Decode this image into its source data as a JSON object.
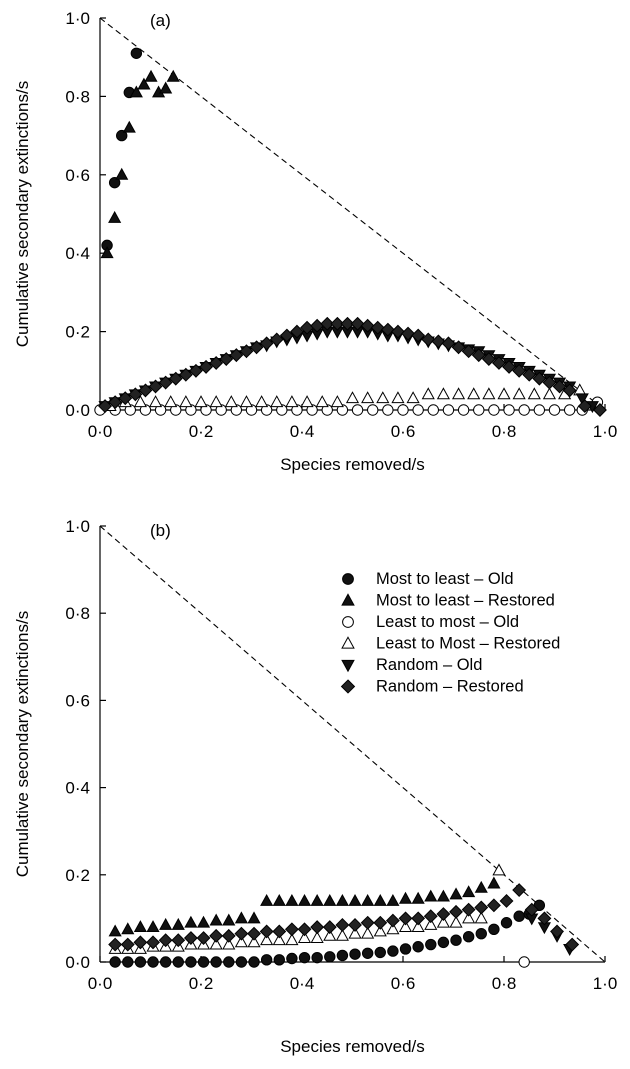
{
  "chart_data": [
    {
      "type": "scatter",
      "panel_label": "(a)",
      "xlabel": "Species removed/s",
      "ylabel": "Cumulative secondary extinctions/s",
      "xlim": [
        0,
        1
      ],
      "ylim": [
        0,
        1
      ],
      "xticks": [
        "0·0",
        "0·2",
        "0·4",
        "0·6",
        "0·8",
        "1·0"
      ],
      "yticks": [
        "0·0",
        "0·2",
        "0·4",
        "0·6",
        "0·8",
        "1·0"
      ],
      "reference_line": {
        "style": "dashed",
        "from": [
          0,
          1
        ],
        "to": [
          1,
          0
        ]
      },
      "series": [
        {
          "name": "Most to least – Old",
          "marker": "circle-filled",
          "x": [
            0.014,
            0.029,
            0.043,
            0.058,
            0.072
          ],
          "y": [
            0.42,
            0.58,
            0.7,
            0.81,
            0.91
          ]
        },
        {
          "name": "Most to least – Restored",
          "marker": "triangle-up-filled",
          "x": [
            0.014,
            0.029,
            0.043,
            0.058,
            0.072,
            0.087,
            0.101,
            0.116,
            0.13,
            0.145
          ],
          "y": [
            0.4,
            0.49,
            0.6,
            0.72,
            0.81,
            0.83,
            0.85,
            0.81,
            0.82,
            0.85
          ]
        },
        {
          "name": "Least to most – Old",
          "marker": "circle-open",
          "x": [
            0.0,
            0.03,
            0.06,
            0.09,
            0.12,
            0.15,
            0.18,
            0.21,
            0.24,
            0.27,
            0.3,
            0.33,
            0.36,
            0.39,
            0.42,
            0.45,
            0.48,
            0.51,
            0.54,
            0.57,
            0.6,
            0.63,
            0.66,
            0.69,
            0.72,
            0.75,
            0.78,
            0.81,
            0.84,
            0.87,
            0.9,
            0.93,
            0.955,
            0.985
          ],
          "y": [
            0.0,
            0.0,
            0.0,
            0.0,
            0.0,
            0.0,
            0.0,
            0.0,
            0.0,
            0.0,
            0.0,
            0.0,
            0.0,
            0.0,
            0.0,
            0.0,
            0.0,
            0.0,
            0.0,
            0.0,
            0.0,
            0.0,
            0.0,
            0.0,
            0.0,
            0.0,
            0.0,
            0.0,
            0.0,
            0.0,
            0.0,
            0.0,
            0.0,
            0.02
          ]
        },
        {
          "name": "Least to Most – Restored",
          "marker": "triangle-up-open",
          "x": [
            0.02,
            0.05,
            0.08,
            0.11,
            0.14,
            0.17,
            0.2,
            0.23,
            0.26,
            0.29,
            0.32,
            0.35,
            0.38,
            0.41,
            0.44,
            0.47,
            0.5,
            0.53,
            0.56,
            0.59,
            0.62,
            0.65,
            0.68,
            0.71,
            0.74,
            0.77,
            0.8,
            0.83,
            0.86,
            0.89,
            0.92,
            0.95
          ],
          "y": [
            0.01,
            0.02,
            0.02,
            0.02,
            0.02,
            0.02,
            0.02,
            0.02,
            0.02,
            0.02,
            0.02,
            0.02,
            0.02,
            0.02,
            0.02,
            0.02,
            0.03,
            0.03,
            0.03,
            0.03,
            0.03,
            0.04,
            0.04,
            0.04,
            0.04,
            0.04,
            0.04,
            0.04,
            0.04,
            0.04,
            0.04,
            0.05
          ]
        },
        {
          "name": "Random – Old",
          "marker": "triangle-down-filled",
          "x": [
            0.01,
            0.03,
            0.05,
            0.07,
            0.09,
            0.11,
            0.13,
            0.15,
            0.17,
            0.19,
            0.21,
            0.23,
            0.25,
            0.27,
            0.29,
            0.31,
            0.33,
            0.35,
            0.37,
            0.39,
            0.41,
            0.43,
            0.45,
            0.47,
            0.49,
            0.51,
            0.53,
            0.55,
            0.57,
            0.59,
            0.61,
            0.63,
            0.65,
            0.67,
            0.69,
            0.71,
            0.73,
            0.75,
            0.77,
            0.79,
            0.81,
            0.83,
            0.85,
            0.87,
            0.89,
            0.91,
            0.93,
            0.955,
            0.975
          ],
          "y": [
            0.01,
            0.02,
            0.03,
            0.04,
            0.05,
            0.06,
            0.07,
            0.08,
            0.09,
            0.1,
            0.11,
            0.12,
            0.13,
            0.14,
            0.15,
            0.16,
            0.165,
            0.175,
            0.18,
            0.185,
            0.19,
            0.195,
            0.2,
            0.2,
            0.2,
            0.2,
            0.2,
            0.195,
            0.19,
            0.19,
            0.185,
            0.18,
            0.175,
            0.17,
            0.165,
            0.16,
            0.155,
            0.15,
            0.14,
            0.13,
            0.12,
            0.11,
            0.1,
            0.09,
            0.08,
            0.07,
            0.06,
            0.03,
            0.01
          ]
        },
        {
          "name": "Random – Restored",
          "marker": "diamond-filled",
          "x": [
            0.01,
            0.03,
            0.05,
            0.07,
            0.09,
            0.11,
            0.13,
            0.15,
            0.17,
            0.19,
            0.21,
            0.23,
            0.25,
            0.27,
            0.29,
            0.31,
            0.33,
            0.35,
            0.37,
            0.39,
            0.41,
            0.43,
            0.45,
            0.47,
            0.49,
            0.51,
            0.53,
            0.55,
            0.57,
            0.59,
            0.61,
            0.63,
            0.65,
            0.67,
            0.69,
            0.71,
            0.73,
            0.75,
            0.77,
            0.79,
            0.81,
            0.83,
            0.85,
            0.87,
            0.89,
            0.91,
            0.93,
            0.96,
            0.99
          ],
          "y": [
            0.01,
            0.02,
            0.03,
            0.04,
            0.05,
            0.06,
            0.07,
            0.08,
            0.09,
            0.1,
            0.11,
            0.12,
            0.13,
            0.14,
            0.15,
            0.16,
            0.17,
            0.18,
            0.19,
            0.2,
            0.21,
            0.215,
            0.22,
            0.22,
            0.22,
            0.22,
            0.215,
            0.21,
            0.205,
            0.2,
            0.195,
            0.19,
            0.18,
            0.175,
            0.17,
            0.16,
            0.15,
            0.14,
            0.13,
            0.12,
            0.11,
            0.1,
            0.09,
            0.08,
            0.07,
            0.06,
            0.05,
            0.01,
            0.0
          ]
        }
      ]
    },
    {
      "type": "scatter",
      "panel_label": "(b)",
      "xlabel": "Species removed/s",
      "ylabel": "Cumulative secondary extinctions/s",
      "xlim": [
        0,
        1
      ],
      "ylim": [
        0,
        1
      ],
      "xticks": [
        "0·0",
        "0·2",
        "0·4",
        "0·6",
        "0·8",
        "1·0"
      ],
      "yticks": [
        "0·0",
        "0·2",
        "0·4",
        "0·6",
        "0·8",
        "1·0"
      ],
      "reference_line": {
        "style": "dashed",
        "from": [
          0,
          1
        ],
        "to": [
          1,
          0
        ]
      },
      "legend": {
        "placement": "top-right",
        "entries": [
          {
            "label": "Most to least – Old",
            "marker": "circle-filled"
          },
          {
            "label": "Most to least – Restored",
            "marker": "triangle-up-filled"
          },
          {
            "label": "Least to most – Old",
            "marker": "circle-open"
          },
          {
            "label": "Least to Most – Restored",
            "marker": "triangle-up-open"
          },
          {
            "label": "Random – Old",
            "marker": "triangle-down-filled"
          },
          {
            "label": "Random – Restored",
            "marker": "diamond-filled"
          }
        ]
      },
      "series": [
        {
          "name": "Most to least – Old",
          "marker": "circle-filled",
          "x": [
            0.03,
            0.055,
            0.08,
            0.105,
            0.13,
            0.155,
            0.18,
            0.205,
            0.23,
            0.255,
            0.28,
            0.305,
            0.33,
            0.355,
            0.38,
            0.405,
            0.43,
            0.455,
            0.48,
            0.505,
            0.53,
            0.555,
            0.58,
            0.605,
            0.63,
            0.655,
            0.68,
            0.705,
            0.73,
            0.755,
            0.78,
            0.805,
            0.83,
            0.85,
            0.87
          ],
          "y": [
            0.0,
            0.0,
            0.0,
            0.0,
            0.0,
            0.0,
            0.0,
            0.0,
            0.0,
            0.0,
            0.0,
            0.0,
            0.005,
            0.005,
            0.008,
            0.01,
            0.01,
            0.012,
            0.015,
            0.018,
            0.02,
            0.022,
            0.025,
            0.03,
            0.035,
            0.04,
            0.045,
            0.05,
            0.058,
            0.065,
            0.075,
            0.09,
            0.105,
            0.11,
            0.13
          ]
        },
        {
          "name": "Most to least – Restored",
          "marker": "triangle-up-filled",
          "x": [
            0.03,
            0.055,
            0.08,
            0.105,
            0.13,
            0.155,
            0.18,
            0.205,
            0.23,
            0.255,
            0.28,
            0.305,
            0.33,
            0.355,
            0.38,
            0.405,
            0.43,
            0.455,
            0.48,
            0.505,
            0.53,
            0.555,
            0.58,
            0.605,
            0.63,
            0.655,
            0.68,
            0.705,
            0.73,
            0.755,
            0.78
          ],
          "y": [
            0.07,
            0.075,
            0.08,
            0.08,
            0.085,
            0.085,
            0.09,
            0.09,
            0.095,
            0.095,
            0.1,
            0.1,
            0.14,
            0.14,
            0.14,
            0.14,
            0.14,
            0.14,
            0.14,
            0.14,
            0.14,
            0.14,
            0.14,
            0.145,
            0.145,
            0.15,
            0.15,
            0.155,
            0.16,
            0.17,
            0.18
          ]
        },
        {
          "name": "Least to most – Old",
          "marker": "circle-open",
          "x": [
            0.84
          ],
          "y": [
            0.0
          ]
        },
        {
          "name": "Least to Most – Restored",
          "marker": "triangle-up-open",
          "x": [
            0.03,
            0.055,
            0.08,
            0.105,
            0.13,
            0.155,
            0.18,
            0.205,
            0.23,
            0.255,
            0.28,
            0.305,
            0.33,
            0.355,
            0.38,
            0.405,
            0.43,
            0.455,
            0.48,
            0.505,
            0.53,
            0.555,
            0.58,
            0.605,
            0.63,
            0.655,
            0.68,
            0.705,
            0.73,
            0.755,
            0.79
          ],
          "y": [
            0.03,
            0.03,
            0.03,
            0.035,
            0.035,
            0.035,
            0.04,
            0.04,
            0.04,
            0.04,
            0.045,
            0.045,
            0.05,
            0.05,
            0.05,
            0.055,
            0.055,
            0.06,
            0.06,
            0.065,
            0.065,
            0.07,
            0.075,
            0.08,
            0.08,
            0.085,
            0.09,
            0.09,
            0.1,
            0.1,
            0.21
          ]
        },
        {
          "name": "Random – Old",
          "marker": "triangle-down-filled",
          "x": [
            0.855,
            0.88,
            0.905,
            0.93
          ],
          "y": [
            0.1,
            0.08,
            0.06,
            0.03
          ]
        },
        {
          "name": "Random – Restored",
          "marker": "diamond-filled",
          "x": [
            0.03,
            0.055,
            0.08,
            0.105,
            0.13,
            0.155,
            0.18,
            0.205,
            0.23,
            0.255,
            0.28,
            0.305,
            0.33,
            0.355,
            0.38,
            0.405,
            0.43,
            0.455,
            0.48,
            0.505,
            0.53,
            0.555,
            0.58,
            0.605,
            0.63,
            0.655,
            0.68,
            0.705,
            0.73,
            0.755,
            0.78,
            0.805,
            0.83,
            0.855,
            0.88,
            0.905,
            0.935
          ],
          "y": [
            0.04,
            0.04,
            0.045,
            0.045,
            0.05,
            0.05,
            0.055,
            0.055,
            0.06,
            0.06,
            0.065,
            0.065,
            0.07,
            0.07,
            0.075,
            0.075,
            0.08,
            0.08,
            0.085,
            0.085,
            0.09,
            0.09,
            0.095,
            0.1,
            0.1,
            0.105,
            0.11,
            0.115,
            0.12,
            0.125,
            0.13,
            0.14,
            0.165,
            0.12,
            0.1,
            0.07,
            0.04
          ]
        }
      ]
    }
  ]
}
